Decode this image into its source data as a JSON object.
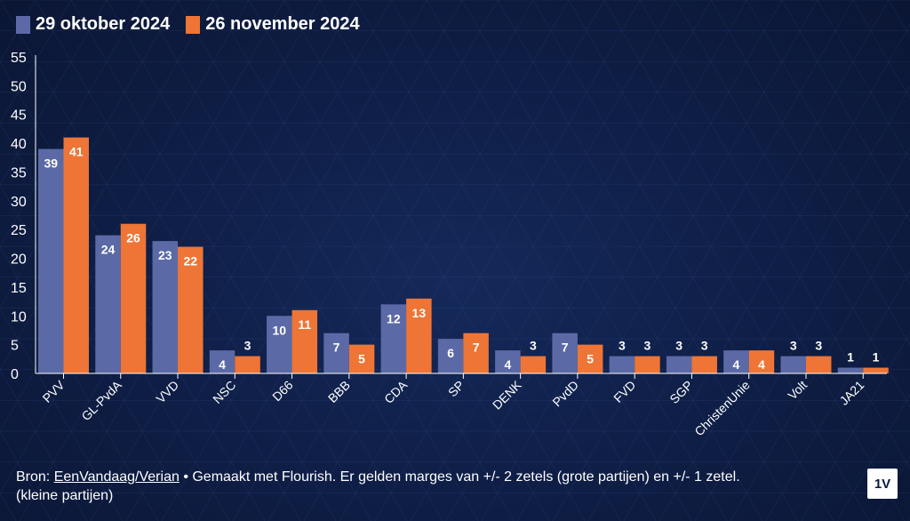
{
  "colors": {
    "series_1": "#5b6aa6",
    "series_2": "#ee7535",
    "label_text": "#ffffff",
    "background": "#0f1f48"
  },
  "legend": [
    {
      "label": "29 oktober 2024"
    },
    {
      "label": "26 november 2024"
    }
  ],
  "footer": {
    "prefix": "Bron:",
    "source_link": "EenVandaag/Verian",
    "rest_line1": "• Gemaakt met Flourish. Er gelden marges van +/- 2 zetels (grote partijen) en +/- 1 zetel.",
    "line2": "(kleine partijen)"
  },
  "logo_text": "1V",
  "chart_data": {
    "type": "bar",
    "categories": [
      "PVV",
      "GL-PvdA",
      "VVD",
      "NSC",
      "D66",
      "BBB",
      "CDA",
      "SP",
      "DENK",
      "PvdD",
      "FVD",
      "SGP",
      "ChristenUnie",
      "Volt",
      "JA21"
    ],
    "series": [
      {
        "name": "29 oktober 2024",
        "values": [
          39,
          24,
          23,
          4,
          10,
          7,
          12,
          6,
          4,
          7,
          3,
          3,
          4,
          3,
          1
        ]
      },
      {
        "name": "26 november 2024",
        "values": [
          41,
          26,
          22,
          3,
          11,
          5,
          13,
          7,
          3,
          5,
          3,
          3,
          4,
          3,
          1
        ]
      }
    ],
    "title": "",
    "xlabel": "",
    "ylabel": "",
    "ylim": [
      0,
      55
    ],
    "yticks": [
      0,
      5,
      10,
      15,
      20,
      25,
      30,
      35,
      40,
      45,
      50,
      55
    ],
    "grid": false,
    "legend_position": "top-left"
  }
}
